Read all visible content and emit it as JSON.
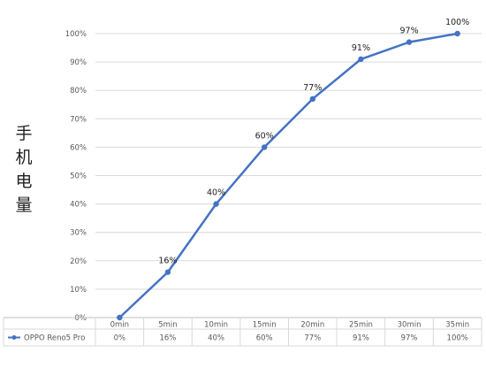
{
  "chart_data": {
    "type": "line",
    "title": "",
    "xlabel": "",
    "ylabel": [
      "手",
      "机",
      "电",
      "量"
    ],
    "x": [
      "0min",
      "5min",
      "10min",
      "15min",
      "20min",
      "25min",
      "30min",
      "35min"
    ],
    "y_ticks": [
      "0%",
      "10%",
      "20%",
      "30%",
      "40%",
      "50%",
      "60%",
      "70%",
      "80%",
      "90%",
      "100%"
    ],
    "ylim": [
      0,
      100
    ],
    "grid": true,
    "series": [
      {
        "name": "OPPO Reno5 Pro",
        "values": [
          0,
          16,
          40,
          60,
          77,
          91,
          97,
          100
        ],
        "point_labels": [
          "",
          "16%",
          "40%",
          "60%",
          "77%",
          "91%",
          "97%",
          "100%"
        ],
        "table_values": [
          "0%",
          "16%",
          "40%",
          "60%",
          "77%",
          "91%",
          "97%",
          "100%"
        ],
        "color": "#4472c4"
      }
    ],
    "legend": "data-table-bottom"
  }
}
